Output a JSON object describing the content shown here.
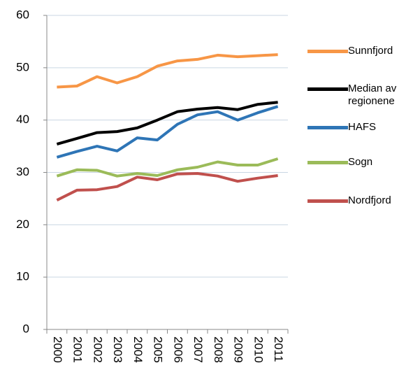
{
  "chart_data": {
    "type": "line",
    "categories": [
      "2000",
      "2001",
      "2002",
      "2003",
      "2004",
      "2005",
      "2006",
      "2007",
      "2008",
      "2009",
      "2010",
      "2011"
    ],
    "series": [
      {
        "name": "Sunnfjord",
        "color": "#f79646",
        "values": [
          46.3,
          46.5,
          48.3,
          47.1,
          48.3,
          50.3,
          51.3,
          51.6,
          52.4,
          52.1,
          52.3,
          52.5
        ]
      },
      {
        "name": "Median av regionene",
        "color": "#000000",
        "values": [
          35.4,
          36.5,
          37.6,
          37.8,
          38.5,
          40.0,
          41.6,
          42.1,
          42.4,
          42.0,
          43.0,
          43.4
        ]
      },
      {
        "name": "HAFS",
        "color": "#2e75b6",
        "values": [
          32.9,
          34.0,
          35.0,
          34.1,
          36.6,
          36.2,
          39.2,
          41.0,
          41.6,
          40.0,
          41.4,
          42.6
        ]
      },
      {
        "name": "Sogn",
        "color": "#9bbb59",
        "values": [
          29.3,
          30.5,
          30.4,
          29.3,
          29.8,
          29.4,
          30.5,
          31.0,
          32.0,
          31.4,
          31.4,
          32.6
        ]
      },
      {
        "name": "Nordfjord",
        "color": "#c0504d",
        "values": [
          24.7,
          26.6,
          26.7,
          27.3,
          29.1,
          28.6,
          29.7,
          29.8,
          29.3,
          28.3,
          28.9,
          29.4
        ]
      }
    ],
    "ylim": [
      0,
      60
    ],
    "yticks": [
      0,
      10,
      20,
      30,
      40,
      50,
      60
    ],
    "grid": true,
    "legend": "right"
  }
}
